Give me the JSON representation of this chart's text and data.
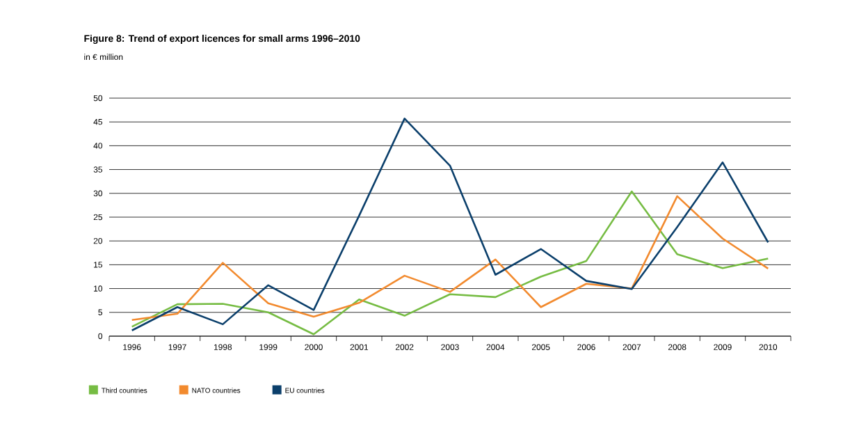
{
  "chart_data": {
    "type": "line",
    "title": "Figure 8: Trend of export licences for small arms 1996–2010",
    "subtitle": "in € million",
    "categories": [
      "1996",
      "1997",
      "1998",
      "1999",
      "2000",
      "2001",
      "2002",
      "2003",
      "2004",
      "2005",
      "2006",
      "2007",
      "2008",
      "2009",
      "2010"
    ],
    "series": [
      {
        "name": "Third countries",
        "color": "#76bc43",
        "values": [
          2,
          6.7,
          6.8,
          5,
          0.4,
          7.7,
          4.3,
          8.8,
          8.2,
          12.5,
          15.8,
          30.4,
          17.2,
          14.3,
          16.3
        ]
      },
      {
        "name": "NATO countries",
        "color": "#f28a2e",
        "values": [
          3.4,
          4.7,
          15.4,
          6.9,
          4.1,
          7,
          12.7,
          9.3,
          16.1,
          6.1,
          11,
          10,
          29.4,
          20.5,
          14.2
        ]
      },
      {
        "name": "EU countries",
        "color": "#0b3f6b",
        "values": [
          1.2,
          6.1,
          2.5,
          10.7,
          5.5,
          25.3,
          45.7,
          35.8,
          12.9,
          18.3,
          11.6,
          9.9,
          22.9,
          36.5,
          19.7
        ]
      }
    ],
    "ylim": [
      0,
      50
    ],
    "yticks": [
      0,
      5,
      10,
      15,
      20,
      25,
      30,
      35,
      40,
      45,
      50
    ],
    "grid": "y",
    "legend": "bottom",
    "marker": "none",
    "line_style": "solid"
  }
}
